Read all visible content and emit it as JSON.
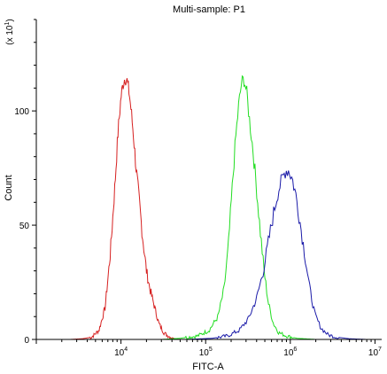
{
  "chart_data": {
    "type": "line",
    "title": "Multi-sample: P1",
    "xlabel": "FITC-A",
    "ylabel": "Count",
    "y_multiplier_label": "(x 10",
    "y_multiplier_exp": "1",
    "y_multiplier_close": ")",
    "x_scale": "log",
    "xlim": [
      1000,
      12000000
    ],
    "ylim": [
      0,
      140
    ],
    "x_ticks": [
      {
        "base": "10",
        "exp": "4",
        "value": 10000
      },
      {
        "base": "10",
        "exp": "5",
        "value": 100000
      },
      {
        "base": "10",
        "exp": "6",
        "value": 1000000
      },
      {
        "base": "10",
        "exp": "7",
        "value": 10000000
      }
    ],
    "y_ticks": [
      0,
      50,
      100
    ],
    "grid": false,
    "series": [
      {
        "color": "#d62020",
        "points": [
          [
            2500,
            0
          ],
          [
            3500,
            0.3
          ],
          [
            4500,
            1
          ],
          [
            5500,
            4
          ],
          [
            6500,
            14
          ],
          [
            7500,
            38
          ],
          [
            8500,
            68
          ],
          [
            9200,
            90
          ],
          [
            10000,
            106
          ],
          [
            10600,
            112
          ],
          [
            11200,
            115
          ],
          [
            11800,
            113
          ],
          [
            12500,
            108
          ],
          [
            13200,
            100
          ],
          [
            14000,
            90
          ],
          [
            15000,
            76
          ],
          [
            16500,
            60
          ],
          [
            18000,
            45
          ],
          [
            20000,
            30
          ],
          [
            22000,
            22
          ],
          [
            25000,
            14
          ],
          [
            28000,
            7
          ],
          [
            32000,
            3
          ],
          [
            36000,
            1.5
          ],
          [
            42000,
            0.5
          ],
          [
            50000,
            0
          ]
        ]
      },
      {
        "color": "#22dd22",
        "points": [
          [
            30000,
            0
          ],
          [
            50000,
            0.5
          ],
          [
            80000,
            1.5
          ],
          [
            110000,
            4
          ],
          [
            140000,
            10
          ],
          [
            165000,
            22
          ],
          [
            185000,
            40
          ],
          [
            205000,
            65
          ],
          [
            225000,
            87
          ],
          [
            245000,
            102
          ],
          [
            265000,
            112
          ],
          [
            285000,
            114
          ],
          [
            305000,
            108
          ],
          [
            330000,
            96
          ],
          [
            360000,
            84
          ],
          [
            395000,
            68
          ],
          [
            440000,
            48
          ],
          [
            490000,
            30
          ],
          [
            550000,
            16
          ],
          [
            630000,
            7
          ],
          [
            730000,
            3
          ],
          [
            900000,
            1.5
          ],
          [
            1200000,
            0.5
          ],
          [
            2000000,
            0
          ]
        ]
      },
      {
        "color": "#1a1aa8",
        "points": [
          [
            60000,
            0
          ],
          [
            120000,
            0.5
          ],
          [
            180000,
            1.5
          ],
          [
            250000,
            4
          ],
          [
            320000,
            9
          ],
          [
            400000,
            18
          ],
          [
            480000,
            30
          ],
          [
            560000,
            44
          ],
          [
            640000,
            56
          ],
          [
            720000,
            65
          ],
          [
            800000,
            70
          ],
          [
            880000,
            74
          ],
          [
            960000,
            74
          ],
          [
            1060000,
            70
          ],
          [
            1180000,
            62
          ],
          [
            1320000,
            50
          ],
          [
            1500000,
            36
          ],
          [
            1700000,
            22
          ],
          [
            1950000,
            11
          ],
          [
            2300000,
            5
          ],
          [
            2800000,
            2
          ],
          [
            3500000,
            1
          ],
          [
            5000000,
            0.3
          ],
          [
            8000000,
            0
          ]
        ]
      }
    ]
  }
}
